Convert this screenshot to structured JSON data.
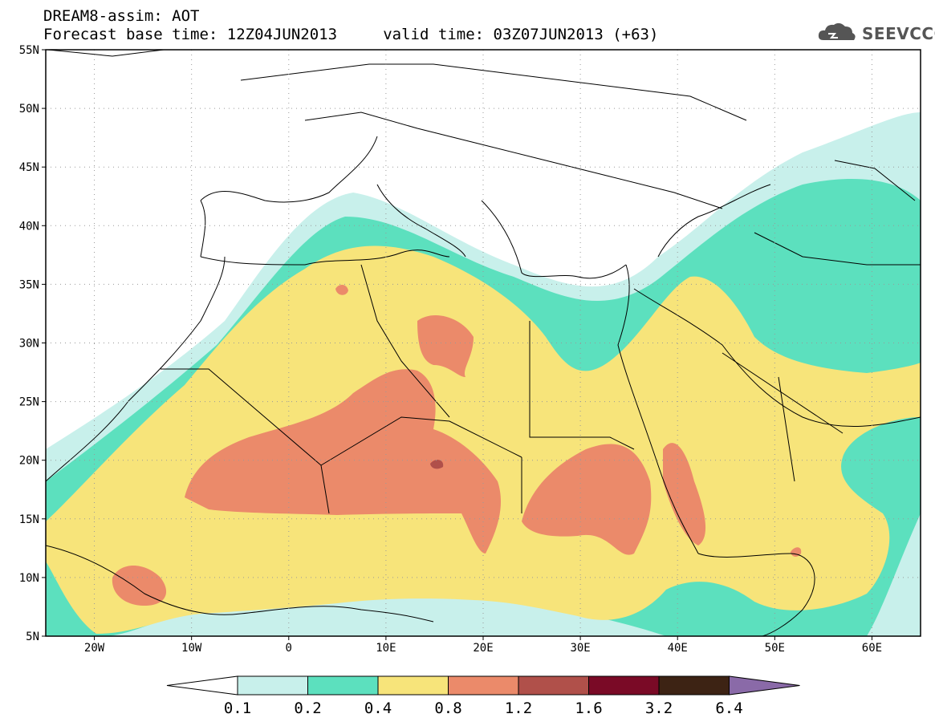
{
  "header": {
    "title_line1": "DREAM8-assim: AOT",
    "title_line2": "Forecast base time: 12Z04JUN2013     valid time: 03Z07JUN2013 (+63)",
    "logo_text": "SEEVCCC",
    "logo_icon": "cloud-icon"
  },
  "axes": {
    "lat_labels": [
      "55N",
      "50N",
      "45N",
      "40N",
      "35N",
      "30N",
      "25N",
      "20N",
      "15N",
      "10N",
      "5N"
    ],
    "lat_values": [
      55,
      50,
      45,
      40,
      35,
      30,
      25,
      20,
      15,
      10,
      5
    ],
    "lon_labels": [
      "20W",
      "10W",
      "0",
      "10E",
      "20E",
      "30E",
      "40E",
      "50E",
      "60E"
    ],
    "lon_values": [
      -20,
      -10,
      0,
      10,
      20,
      30,
      40,
      50,
      60
    ],
    "lon_range": [
      -25,
      65
    ],
    "lat_range": [
      5,
      55
    ],
    "gridlines": "dotted"
  },
  "legend": {
    "labels": [
      "0.1",
      "0.2",
      "0.4",
      "0.8",
      "1.2",
      "1.6",
      "3.2",
      "6.4"
    ],
    "colors": [
      "#ffffff",
      "#c8f0eb",
      "#5ce0be",
      "#f7e47a",
      "#eb8a6a",
      "#b0504a",
      "#7a0a26",
      "#3d2314",
      "#8a6aa8"
    ]
  }
}
